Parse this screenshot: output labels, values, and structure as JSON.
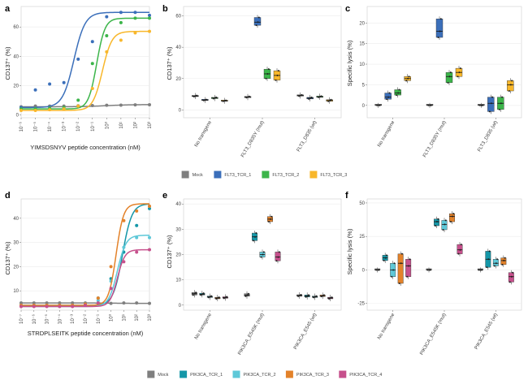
{
  "panels": [
    {
      "id": "a",
      "letter": "a",
      "type": "line",
      "ylabel": "CD137⁺ (%)",
      "xlabel": "YIMSDSNYV peptide concentration (nM)"
    },
    {
      "id": "b",
      "letter": "b",
      "type": "boxplot",
      "ylabel": "CD137⁺ (%)"
    },
    {
      "id": "c",
      "letter": "c",
      "type": "boxplot",
      "ylabel": "Specific lysis (%)"
    },
    {
      "id": "d",
      "letter": "d",
      "type": "line",
      "ylabel": "CD137⁺ (%)",
      "xlabel": "STRDPLSEITK peptide concentration (nM)"
    },
    {
      "id": "e",
      "letter": "e",
      "type": "boxplot",
      "ylabel": "CD137⁺ (%)"
    },
    {
      "id": "f",
      "letter": "f",
      "type": "boxplot",
      "ylabel": "Specific lysis (%)"
    }
  ],
  "legend_top": {
    "items": [
      {
        "label": "Mock",
        "color": "#7f7f7f"
      },
      {
        "label": "FLT3_TCR_1",
        "color": "#3b6fba"
      },
      {
        "label": "FLT3_TCR_2",
        "color": "#3cb54a"
      },
      {
        "label": "FLT3_TCR_3",
        "color": "#f8b72b"
      }
    ]
  },
  "legend_bottom": {
    "items": [
      {
        "label": "Mock",
        "color": "#7f7f7f"
      },
      {
        "label": "PIK3CA_TCR_1",
        "color": "#1597a8"
      },
      {
        "label": "PIK3CA_TCR_2",
        "color": "#5ec8d8"
      },
      {
        "label": "PIK3CA_TCR_3",
        "color": "#e3822a"
      },
      {
        "label": "PIK3CA_TCR_4",
        "color": "#c6508c"
      }
    ]
  },
  "chart_data": [
    {
      "panel": "a",
      "type": "line",
      "xscale": "log10",
      "xticks": [
        "10⁻⁶",
        "10⁻⁵",
        "10⁻⁴",
        "10⁻³",
        "10⁻²",
        "10⁻¹",
        "10⁰",
        "10¹",
        "10²",
        "10³"
      ],
      "xlim": [
        -6,
        3
      ],
      "yticks": [
        0,
        20,
        40,
        60
      ],
      "ylim": [
        -2,
        74
      ],
      "xlabel": "YIMSDSNYV peptide concentration (nM)",
      "ylabel": "CD137⁺ (%)",
      "series": [
        {
          "name": "Mock",
          "color": "#7f7f7f",
          "curve": {
            "bottom": 5.5,
            "top": 7,
            "ec50": 0,
            "hill": 0.5
          },
          "points": [
            [
              -6,
              5.5
            ],
            [
              -5,
              6
            ],
            [
              -4,
              6
            ],
            [
              -3,
              6
            ],
            [
              -2,
              6.2
            ],
            [
              -1,
              6.3
            ],
            [
              0,
              6.5
            ],
            [
              1,
              6.6
            ],
            [
              2,
              6.8
            ],
            [
              3,
              6.9
            ]
          ]
        },
        {
          "name": "FLT3_TCR_1",
          "color": "#3b6fba",
          "curve": {
            "bottom": 5,
            "top": 70,
            "ec50": -2.3,
            "hill": 1.1
          },
          "points": [
            [
              -6,
              5
            ],
            [
              -5,
              17
            ],
            [
              -4,
              21
            ],
            [
              -3,
              22
            ],
            [
              -2,
              38
            ],
            [
              -1,
              50
            ],
            [
              0,
              67
            ],
            [
              1,
              70
            ],
            [
              2,
              70
            ],
            [
              3,
              68
            ]
          ]
        },
        {
          "name": "FLT3_TCR_2",
          "color": "#3cb54a",
          "curve": {
            "bottom": 4,
            "top": 66,
            "ec50": -0.7,
            "hill": 1.5
          },
          "points": [
            [
              -6,
              4
            ],
            [
              -5,
              4
            ],
            [
              -4,
              4.5
            ],
            [
              -3,
              5
            ],
            [
              -2,
              10
            ],
            [
              -1,
              35
            ],
            [
              0,
              54
            ],
            [
              1,
              63
            ],
            [
              2,
              66
            ],
            [
              3,
              66
            ]
          ]
        },
        {
          "name": "FLT3_TCR_3",
          "color": "#f8b72b",
          "curve": {
            "bottom": 3,
            "top": 57,
            "ec50": -0.3,
            "hill": 1.3
          },
          "points": [
            [
              -6,
              3
            ],
            [
              -5,
              3
            ],
            [
              -4,
              3.5
            ],
            [
              -3,
              4
            ],
            [
              -2,
              6
            ],
            [
              -1,
              18
            ],
            [
              0,
              43
            ],
            [
              1,
              51
            ],
            [
              2,
              56
            ],
            [
              3,
              57
            ]
          ]
        }
      ]
    },
    {
      "panel": "b",
      "type": "boxplot",
      "categories": [
        "No transgene",
        "FLT3_D835Y (mut)",
        "FLT3_D835 (wt)"
      ],
      "yticks": [
        0,
        20,
        40,
        60
      ],
      "ylim": [
        -5,
        66
      ],
      "ylabel": "CD137⁺ (%)",
      "series_names": [
        "Mock",
        "FLT3_TCR_1",
        "FLT3_TCR_2",
        "FLT3_TCR_3"
      ],
      "colors": [
        "#7f7f7f",
        "#3b6fba",
        "#3cb54a",
        "#f8b72b"
      ],
      "groups": [
        [
          [
            8.5,
            8.8,
            9.2
          ],
          [
            6,
            6.3,
            6.6
          ],
          [
            7.2,
            7.6,
            8
          ],
          [
            5.5,
            5.8,
            6.1
          ]
        ],
        [
          [
            7.8,
            8.2,
            8.6
          ],
          [
            54,
            56,
            59
          ],
          [
            20,
            23,
            26
          ],
          [
            19,
            22,
            25
          ]
        ],
        [
          [
            8.8,
            9.2,
            9.6
          ],
          [
            7,
            7.5,
            8
          ],
          [
            8,
            8.4,
            8.8
          ],
          [
            5.5,
            6,
            6.5
          ]
        ]
      ]
    },
    {
      "panel": "c",
      "type": "boxplot",
      "categories": [
        "No transgene",
        "FLT3_D835Y (mut)",
        "FLT3_D835 (wt)"
      ],
      "yticks": [
        0,
        5,
        10,
        15,
        20
      ],
      "ylim": [
        -3,
        24
      ],
      "ylabel": "Specific lysis (%)",
      "series_names": [
        "Mock",
        "FLT3_TCR_1",
        "FLT3_TCR_2",
        "FLT3_TCR_3"
      ],
      "colors": [
        "#7f7f7f",
        "#3b6fba",
        "#3cb54a",
        "#f8b72b"
      ],
      "groups": [
        [
          [
            0,
            0,
            0
          ],
          [
            1.5,
            2,
            3
          ],
          [
            2.5,
            3,
            3.8
          ],
          [
            6,
            6.5,
            7
          ]
        ],
        [
          [
            0,
            0,
            0
          ],
          [
            16.5,
            18,
            21
          ],
          [
            5.5,
            7,
            8
          ],
          [
            7,
            8,
            9
          ]
        ],
        [
          [
            0,
            0,
            0
          ],
          [
            -1.5,
            0.5,
            2
          ],
          [
            -1,
            0.5,
            2
          ],
          [
            3.5,
            5,
            6
          ]
        ]
      ]
    },
    {
      "panel": "d",
      "type": "line",
      "xscale": "log10",
      "xticks": [
        "10⁻⁷",
        "10⁻⁶",
        "10⁻⁵",
        "10⁻⁴",
        "10⁻³",
        "10⁻²",
        "10⁻¹",
        "10⁰",
        "10¹",
        "10²",
        "10³"
      ],
      "xlim": [
        -7,
        3
      ],
      "yticks": [
        10,
        20,
        30,
        40
      ],
      "ylim": [
        2,
        48
      ],
      "xlabel": "STRDPLSEITK peptide concentration (nM)",
      "ylabel": "CD137⁺ (%)",
      "series": [
        {
          "name": "Mock",
          "color": "#7f7f7f",
          "curve": {
            "bottom": 5,
            "top": 4.8,
            "ec50": 0,
            "hill": 0.5
          },
          "points": [
            [
              -7,
              5
            ],
            [
              -6,
              5
            ],
            [
              -5,
              5
            ],
            [
              -4,
              5
            ],
            [
              -3,
              5
            ],
            [
              -2,
              5
            ],
            [
              -1,
              5
            ],
            [
              0,
              4.8
            ],
            [
              1,
              5
            ],
            [
              2,
              5
            ],
            [
              3,
              4.8
            ]
          ]
        },
        {
          "name": "PIK3CA_TCR_1",
          "color": "#1597a8",
          "curve": {
            "bottom": 4,
            "top": 46,
            "ec50": 0.9,
            "hill": 1.2
          },
          "points": [
            [
              -7,
              4
            ],
            [
              -6,
              4
            ],
            [
              -5,
              4
            ],
            [
              -4,
              4
            ],
            [
              -3,
              4
            ],
            [
              -2,
              4.5
            ],
            [
              -1,
              7
            ],
            [
              0,
              15
            ],
            [
              1,
              26
            ],
            [
              2,
              37
            ],
            [
              3,
              44
            ]
          ]
        },
        {
          "name": "PIK3CA_TCR_2",
          "color": "#5ec8d8",
          "curve": {
            "bottom": 3.5,
            "top": 33,
            "ec50": 0.5,
            "hill": 1.3
          },
          "points": [
            [
              -7,
              4
            ],
            [
              -6,
              4
            ],
            [
              -5,
              4
            ],
            [
              -4,
              4
            ],
            [
              -3,
              4
            ],
            [
              -2,
              4
            ],
            [
              -1,
              6
            ],
            [
              0,
              14
            ],
            [
              1,
              28
            ],
            [
              2,
              32
            ],
            [
              3,
              32
            ]
          ]
        },
        {
          "name": "PIK3CA_TCR_3",
          "color": "#e3822a",
          "curve": {
            "bottom": 4,
            "top": 46,
            "ec50": 0.4,
            "hill": 1.5
          },
          "points": [
            [
              -7,
              4
            ],
            [
              -6,
              4
            ],
            [
              -5,
              4
            ],
            [
              -4,
              4
            ],
            [
              -3,
              4
            ],
            [
              -2,
              4.5
            ],
            [
              -1,
              7
            ],
            [
              0,
              20
            ],
            [
              1,
              39
            ],
            [
              2,
              43
            ],
            [
              3,
              45
            ]
          ]
        },
        {
          "name": "PIK3CA_TCR_4",
          "color": "#c6508c",
          "curve": {
            "bottom": 3.5,
            "top": 27,
            "ec50": 0.5,
            "hill": 1.5
          },
          "points": [
            [
              -7,
              3.5
            ],
            [
              -6,
              3.5
            ],
            [
              -5,
              3.5
            ],
            [
              -4,
              3.5
            ],
            [
              -3,
              3.5
            ],
            [
              -2,
              4
            ],
            [
              -1,
              5
            ],
            [
              0,
              11
            ],
            [
              1,
              22
            ],
            [
              2,
              26
            ],
            [
              3,
              27
            ]
          ]
        }
      ]
    },
    {
      "panel": "e",
      "type": "boxplot",
      "categories": [
        "No transgene",
        "PIK3CA_E545K (mut)",
        "PIK3CA_E545 (wt)"
      ],
      "yticks": [
        0,
        10,
        20,
        30,
        40
      ],
      "ylim": [
        -2,
        42
      ],
      "ylabel": "CD137⁺ (%)",
      "series_names": [
        "Mock",
        "PIK3CA_TCR_1",
        "PIK3CA_TCR_2",
        "PIK3CA_TCR_3",
        "PIK3CA_TCR_4"
      ],
      "colors": [
        "#7f7f7f",
        "#1597a8",
        "#5ec8d8",
        "#e3822a",
        "#c6508c"
      ],
      "groups": [
        [
          [
            4,
            4.5,
            5
          ],
          [
            4,
            4.3,
            4.7
          ],
          [
            3,
            3.3,
            3.6
          ],
          [
            2.5,
            2.8,
            3.1
          ],
          [
            2.7,
            3,
            3.3
          ]
        ],
        [
          [
            3.5,
            4,
            4.5
          ],
          [
            25.5,
            27,
            28.5
          ],
          [
            19,
            20,
            21
          ],
          [
            33,
            34,
            35
          ],
          [
            17.5,
            19,
            21
          ]
        ],
        [
          [
            3.5,
            3.8,
            4.1
          ],
          [
            3.2,
            3.6,
            4
          ],
          [
            3,
            3.3,
            3.6
          ],
          [
            3.4,
            3.7,
            4
          ],
          [
            2.5,
            2.8,
            3.1
          ]
        ]
      ]
    },
    {
      "panel": "f",
      "type": "boxplot",
      "categories": [
        "No transgene",
        "PIK3CA_E545K (mut)",
        "PIK3CA_E545 (wt)"
      ],
      "yticks": [
        -25,
        0,
        25,
        50
      ],
      "ylim": [
        -30,
        53
      ],
      "ylabel": "Specific lysis (%)",
      "series_names": [
        "Mock",
        "PIK3CA_TCR_1",
        "PIK3CA_TCR_2",
        "PIK3CA_TCR_3",
        "PIK3CA_TCR_4"
      ],
      "colors": [
        "#7f7f7f",
        "#1597a8",
        "#5ec8d8",
        "#e3822a",
        "#c6508c"
      ],
      "groups": [
        [
          [
            0,
            0,
            0
          ],
          [
            7,
            9,
            11
          ],
          [
            -5,
            0,
            5
          ],
          [
            -10,
            5,
            12
          ],
          [
            -5,
            3,
            8
          ]
        ],
        [
          [
            0,
            0,
            0
          ],
          [
            33,
            36,
            38
          ],
          [
            30,
            34,
            37
          ],
          [
            36,
            40,
            42
          ],
          [
            12,
            15,
            19
          ]
        ],
        [
          [
            0,
            0,
            0
          ],
          [
            2,
            8,
            14
          ],
          [
            3,
            5,
            8
          ],
          [
            4,
            7,
            9
          ],
          [
            -9,
            -5,
            -2
          ]
        ]
      ]
    }
  ]
}
